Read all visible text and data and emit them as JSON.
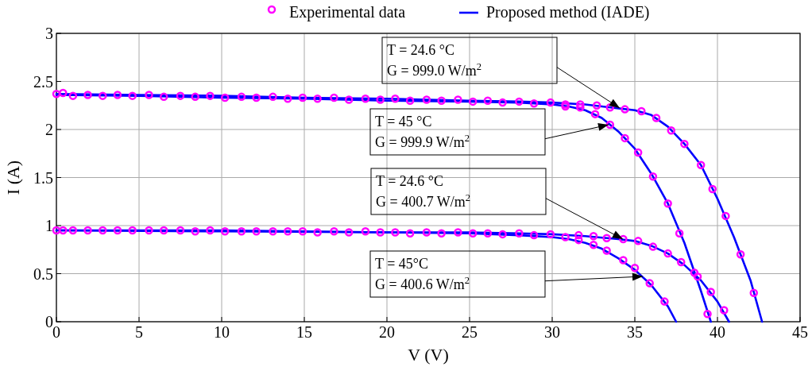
{
  "chart_data": {
    "type": "scatter",
    "xlabel": "V (V)",
    "ylabel": "I (A)",
    "xlim": [
      0,
      45
    ],
    "ylim": [
      0,
      3
    ],
    "xticks": [
      0,
      5,
      10,
      15,
      20,
      25,
      30,
      35,
      40,
      45
    ],
    "yticks": [
      0,
      0.5,
      1,
      1.5,
      2,
      2.5,
      3
    ],
    "grid": true,
    "legend": "top",
    "marker": "circle",
    "series": [
      {
        "name": "Experimental data",
        "color": "#ff00ff",
        "x": [
          0,
          1.9,
          3.7,
          5.6,
          7.5,
          9.3,
          11.2,
          13.1,
          14.9,
          16.8,
          18.7,
          20.5,
          22.4,
          24.3,
          26.1,
          28.0,
          29.9,
          30.8,
          31.7,
          32.7,
          33.5,
          34.4,
          35.4,
          36.3,
          37.2,
          38.0,
          39.0,
          39.7,
          40.5,
          41.4,
          42.2
        ],
        "values": [
          2.37,
          2.36,
          2.36,
          2.36,
          2.35,
          2.35,
          2.34,
          2.34,
          2.33,
          2.33,
          2.32,
          2.32,
          2.31,
          2.31,
          2.3,
          2.29,
          2.28,
          2.26,
          2.26,
          2.25,
          2.23,
          2.21,
          2.19,
          2.12,
          1.99,
          1.85,
          1.63,
          1.38,
          1.1,
          0.7,
          0.3
        ]
      },
      {
        "color": "#ff00ff",
        "x": [
          0.4,
          1,
          2.8,
          4.6,
          6.5,
          8.4,
          10.2,
          12.1,
          14,
          15.8,
          17.7,
          19.6,
          21.4,
          23.3,
          25.2,
          27,
          28.9,
          30.8,
          31.7,
          32.6,
          33.5,
          34.4,
          35.2,
          36.1,
          37.0,
          37.7,
          38.6,
          39.4
        ],
        "values": [
          2.38,
          2.35,
          2.35,
          2.35,
          2.34,
          2.34,
          2.33,
          2.33,
          2.32,
          2.32,
          2.31,
          2.31,
          2.3,
          2.3,
          2.29,
          2.28,
          2.27,
          2.24,
          2.23,
          2.16,
          2.05,
          1.91,
          1.76,
          1.51,
          1.23,
          0.92,
          0.51,
          0.08
        ]
      },
      {
        "color": "#ff00ff",
        "x": [
          0,
          1.9,
          3.7,
          5.6,
          7.5,
          9.3,
          11.2,
          13.1,
          14.9,
          16.8,
          18.7,
          20.5,
          22.4,
          24.3,
          26.1,
          28.0,
          29.9,
          31.6,
          32.5,
          33.3,
          34.3,
          35.2,
          36.1,
          37.0,
          37.8,
          38.8,
          39.6,
          40.4
        ],
        "values": [
          0.95,
          0.95,
          0.95,
          0.95,
          0.95,
          0.95,
          0.94,
          0.94,
          0.94,
          0.94,
          0.94,
          0.93,
          0.93,
          0.93,
          0.92,
          0.92,
          0.91,
          0.9,
          0.89,
          0.87,
          0.86,
          0.84,
          0.78,
          0.71,
          0.62,
          0.47,
          0.31,
          0.12
        ]
      },
      {
        "color": "#ff00ff",
        "x": [
          0.4,
          1,
          2.8,
          4.6,
          6.5,
          8.4,
          10.2,
          12.1,
          14,
          15.8,
          17.7,
          19.6,
          21.4,
          23.3,
          25.2,
          27,
          28.9,
          30.8,
          31.6,
          32.5,
          33.3,
          34.3,
          35.0,
          35.9,
          36.8
        ],
        "values": [
          0.95,
          0.95,
          0.95,
          0.95,
          0.95,
          0.94,
          0.94,
          0.94,
          0.94,
          0.93,
          0.93,
          0.93,
          0.92,
          0.92,
          0.92,
          0.91,
          0.9,
          0.88,
          0.85,
          0.8,
          0.74,
          0.64,
          0.56,
          0.4,
          0.21
        ]
      },
      {
        "name": "Proposed method (IADE)",
        "type": "line",
        "marker": "none",
        "color": "#0000ff",
        "line_style": "solid",
        "x": [
          0,
          5,
          10,
          15,
          20,
          25,
          28,
          30,
          32,
          34,
          35,
          36,
          37,
          38,
          39,
          40,
          41,
          42,
          42.7
        ],
        "values": [
          2.37,
          2.36,
          2.35,
          2.33,
          2.32,
          2.3,
          2.29,
          2.28,
          2.26,
          2.22,
          2.2,
          2.15,
          2.03,
          1.85,
          1.63,
          1.28,
          0.88,
          0.43,
          0
        ]
      },
      {
        "type": "line",
        "marker": "none",
        "color": "#0000ff",
        "line_style": "solid",
        "x": [
          0,
          5,
          10,
          15,
          20,
          25,
          28,
          30,
          31,
          32,
          33,
          34,
          35,
          36,
          37,
          38,
          39,
          39.6
        ],
        "values": [
          2.36,
          2.35,
          2.33,
          2.32,
          2.3,
          2.29,
          2.28,
          2.26,
          2.24,
          2.2,
          2.12,
          1.98,
          1.8,
          1.54,
          1.23,
          0.82,
          0.32,
          0
        ]
      },
      {
        "type": "line",
        "marker": "none",
        "color": "#0000ff",
        "line_style": "solid",
        "x": [
          0,
          10,
          20,
          25,
          28,
          30,
          32,
          34,
          35,
          36,
          37,
          38,
          39,
          40,
          40.7
        ],
        "values": [
          0.95,
          0.95,
          0.93,
          0.93,
          0.92,
          0.91,
          0.89,
          0.86,
          0.84,
          0.79,
          0.71,
          0.59,
          0.43,
          0.21,
          0
        ]
      },
      {
        "type": "line",
        "marker": "none",
        "color": "#0000ff",
        "line_style": "solid",
        "x": [
          0,
          10,
          20,
          25,
          28,
          30,
          31,
          32,
          33,
          34,
          35,
          36,
          37,
          37.5
        ],
        "values": [
          0.95,
          0.94,
          0.93,
          0.92,
          0.9,
          0.88,
          0.86,
          0.82,
          0.76,
          0.66,
          0.54,
          0.38,
          0.16,
          0
        ]
      }
    ],
    "annotations": [
      "T = 24.6 °C\nG = 999.0 W/m$^{2}$",
      "T = 45 °C\nG = 999.9 W/m$^{2}$",
      "T = 24.6 °C\nG = 400.7 W/m$^{2}$",
      "T = 45°C\nG = 400.6 W/m$^{2}$"
    ]
  }
}
